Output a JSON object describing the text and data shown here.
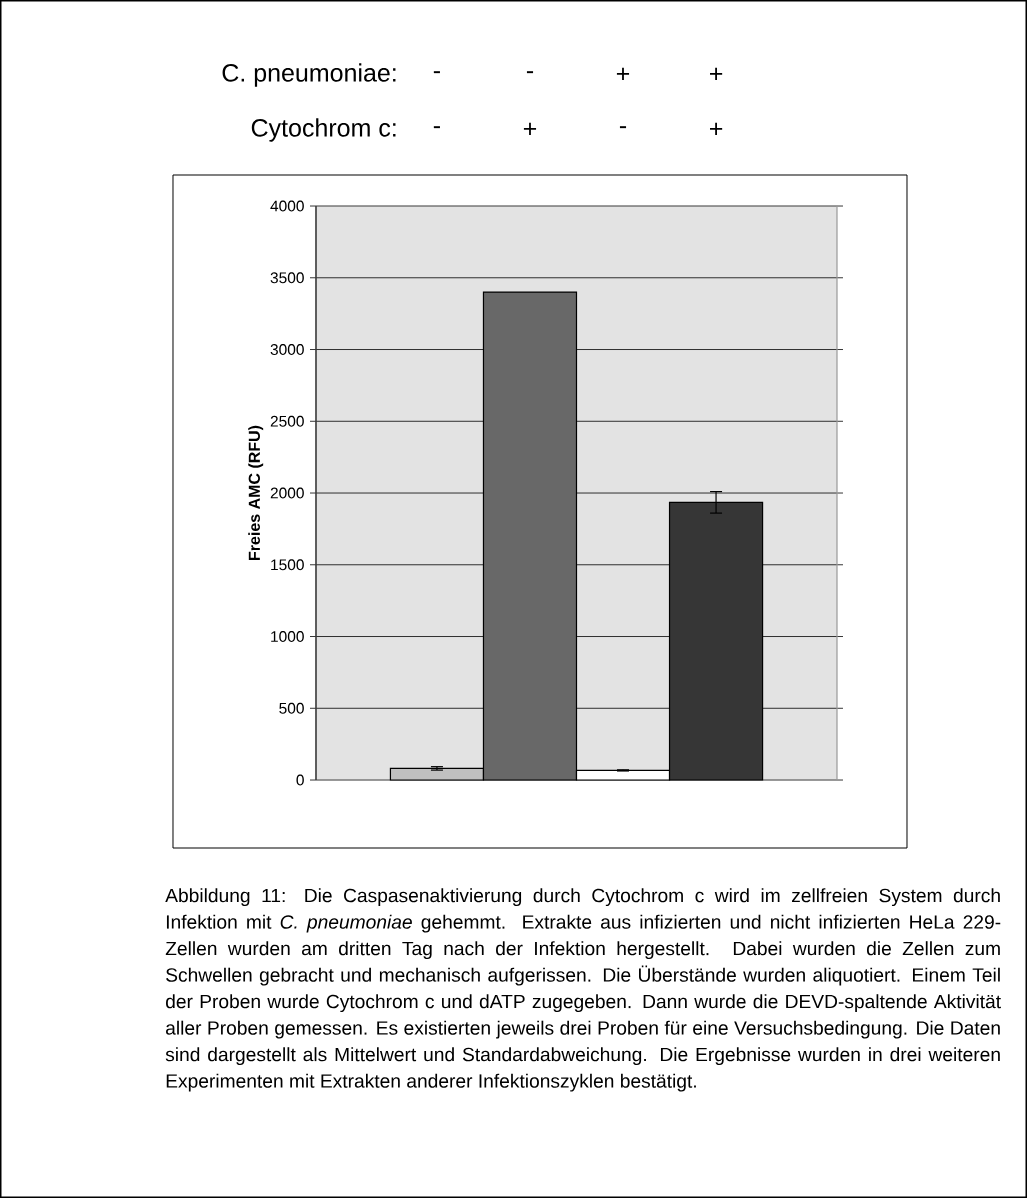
{
  "chart_data": {
    "type": "bar",
    "ylabel": "Freies AMC (RFU)",
    "categories": [
      null,
      null,
      null,
      null
    ],
    "values": [
      81,
      3400,
      67,
      1935
    ],
    "colors": [
      "#c0c0c0",
      "#686868",
      "#ffffff",
      "#363636"
    ],
    "errors": [
      12,
      null,
      4,
      75
    ],
    "ylim": [
      0,
      4000
    ],
    "yticks": [
      0,
      500,
      1000,
      1500,
      2000,
      2500,
      3000,
      3500,
      4000
    ],
    "grid": "y",
    "tick_labels": "y",
    "annotations": [
      "C. pneumoniae:",
      "-",
      "-",
      "+",
      "+",
      "Cytochrom c:",
      "-",
      "+",
      "-",
      "+",
      "Abbildung 11: Die Caspasenaktivierung durch Cytochrom c wird im zellfreien System durch Infektion mit *C. pneumoniae* gehemmt. Extrakte aus infizierten und nicht infizierten HeLa 229-Zellen wurden am dritten Tag nach der Infektion hergestellt. Dabei wurden die Zellen zum Schwellen gebracht und mechanisch aufgerissen. Die Überstände wurden aliquotiert. Einem Teil der Proben wurde Cytochrom c und dATP zugegeben. Dann wurde die DEVD-spaltende Aktivität aller Proben gemessen. Es existierten jeweils drei Proben für eine Versuchsbedingung. Die Daten sind dargestellt als Mittelwert und Standardabweichung. Die Ergebnisse wurden in drei weiteren Experimenten mit Extrakten anderer Infektionszyklen bestätigt."
    ]
  }
}
